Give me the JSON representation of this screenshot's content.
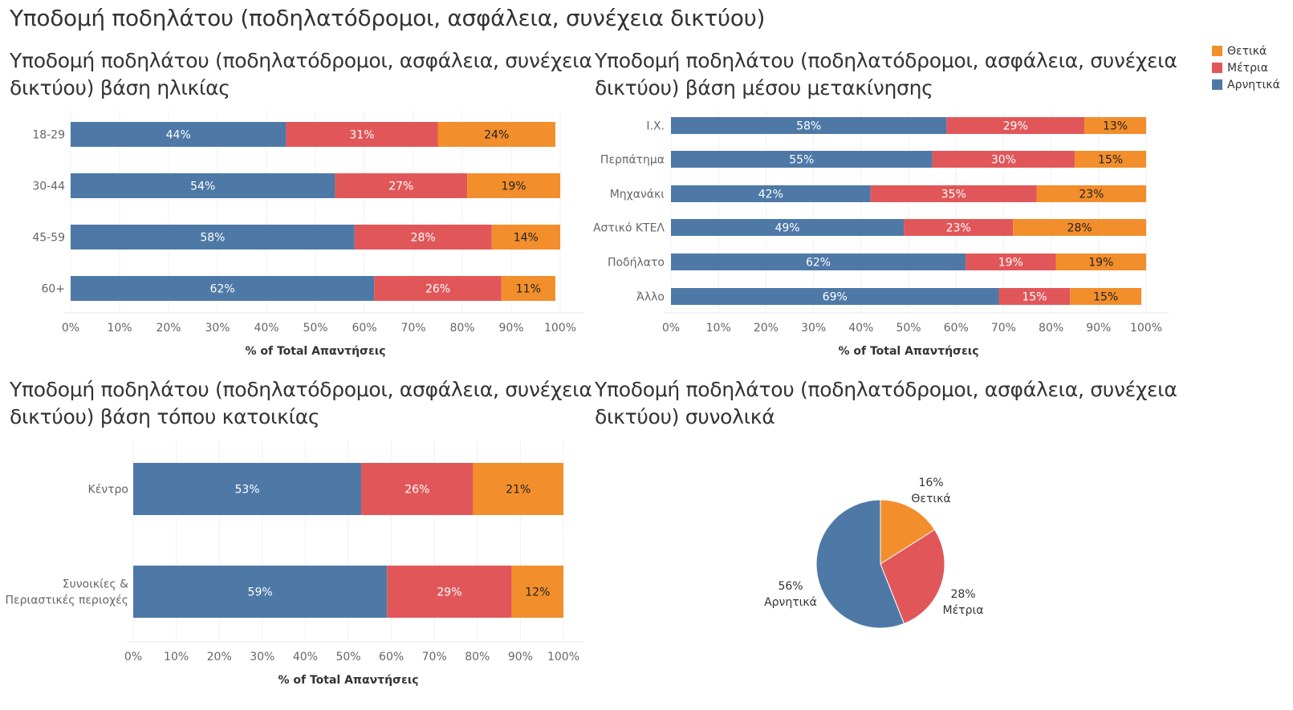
{
  "dashboard_title": "Υποδομή ποδηλάτου (ποδηλατόδρομοι, ασφάλεια, συνέχεια δικτύου)",
  "colors": {
    "Θετικά": "#f28e2b",
    "Μέτρια": "#e15759",
    "Αρνητικά": "#4e79a7"
  },
  "legend": [
    {
      "label": "Θετικά",
      "color": "#f28e2b"
    },
    {
      "label": "Μέτρια",
      "color": "#e15759"
    },
    {
      "label": "Αρνητικά",
      "color": "#4e79a7"
    }
  ],
  "chart_data": [
    {
      "type": "bar",
      "orientation": "horizontal",
      "stacked": "100%",
      "title_line1": "Υποδομή ποδηλάτου (ποδηλατόδρομοι, ασφάλεια, συνέχεια",
      "title_line2": "δικτύου) βάση ηλικίας",
      "categories": [
        "18-29",
        "30-44",
        "45-59",
        "60+"
      ],
      "series": [
        {
          "name": "Αρνητικά",
          "values": [
            44,
            54,
            58,
            62
          ]
        },
        {
          "name": "Μέτρια",
          "values": [
            31,
            27,
            28,
            26
          ]
        },
        {
          "name": "Θετικά",
          "values": [
            24,
            19,
            14,
            11
          ]
        }
      ],
      "xlabel": "% of Total Απαντήσεις",
      "xticks": [
        "0%",
        "10%",
        "20%",
        "30%",
        "40%",
        "50%",
        "60%",
        "70%",
        "80%",
        "90%",
        "100%"
      ],
      "xlim": [
        0,
        100
      ]
    },
    {
      "type": "bar",
      "orientation": "horizontal",
      "stacked": "100%",
      "title_line1": "Υποδομή ποδηλάτου (ποδηλατόδρομοι, ασφάλεια, συνέχεια",
      "title_line2": "δικτύου) βάση μέσου μετακίνησης",
      "categories": [
        "Ι.Χ.",
        "Περπάτημα",
        "Μηχανάκι",
        "Αστικό ΚΤΕΛ",
        "Ποδήλατο",
        "Άλλο"
      ],
      "series": [
        {
          "name": "Αρνητικά",
          "values": [
            58,
            55,
            42,
            49,
            62,
            69
          ]
        },
        {
          "name": "Μέτρια",
          "values": [
            29,
            30,
            35,
            23,
            19,
            15
          ]
        },
        {
          "name": "Θετικά",
          "values": [
            13,
            15,
            23,
            28,
            19,
            15
          ]
        }
      ],
      "xlabel": "% of Total Απαντήσεις",
      "xticks": [
        "0%",
        "10%",
        "20%",
        "30%",
        "40%",
        "50%",
        "60%",
        "70%",
        "80%",
        "90%",
        "100%"
      ],
      "xlim": [
        0,
        100
      ]
    },
    {
      "type": "bar",
      "orientation": "horizontal",
      "stacked": "100%",
      "title_line1": "Υποδομή ποδηλάτου (ποδηλατόδρομοι, ασφάλεια, συνέχεια",
      "title_line2": "δικτύου) βάση τόπου κατοικίας",
      "categories": [
        [
          "Κέντρο"
        ],
        [
          "Συνοικίες &",
          "Περιαστικές περιοχές"
        ]
      ],
      "series": [
        {
          "name": "Αρνητικά",
          "values": [
            53,
            59
          ]
        },
        {
          "name": "Μέτρια",
          "values": [
            26,
            29
          ]
        },
        {
          "name": "Θετικά",
          "values": [
            21,
            12
          ]
        }
      ],
      "xlabel": "% of Total Απαντήσεις",
      "xticks": [
        "0%",
        "10%",
        "20%",
        "30%",
        "40%",
        "50%",
        "60%",
        "70%",
        "80%",
        "90%",
        "100%"
      ],
      "xlim": [
        0,
        100
      ]
    },
    {
      "type": "pie",
      "title_line1": "Υποδομή ποδηλάτου (ποδηλατόδρομοι, ασφάλεια, συνέχεια",
      "title_line2": "δικτύου) συνολικά",
      "slices": [
        {
          "name": "Θετικά",
          "value": 16,
          "label": "16%"
        },
        {
          "name": "Μέτρια",
          "value": 28,
          "label": "28%"
        },
        {
          "name": "Αρνητικά",
          "value": 56,
          "label": "56%"
        }
      ]
    }
  ]
}
